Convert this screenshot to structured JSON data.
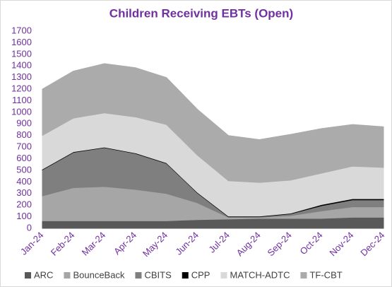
{
  "chart_data": {
    "type": "stacked_area",
    "title": "Children Receiving EBTs (Open)",
    "categories": [
      "Jan-24",
      "Feb-24",
      "Mar-24",
      "Apr-24",
      "May-24",
      "Jun-24",
      "Jul-24",
      "Aug-24",
      "Sep-24",
      "Oct-24",
      "Nov-24",
      "Dec-24"
    ],
    "series": [
      {
        "name": "ARC",
        "color": "#595959",
        "values": [
          65,
          65,
          65,
          65,
          65,
          75,
          80,
          85,
          85,
          85,
          95,
          95
        ]
      },
      {
        "name": "BounceBack",
        "color": "#a6a6a6",
        "values": [
          215,
          285,
          295,
          270,
          235,
          145,
          15,
          10,
          25,
          65,
          90,
          90
        ]
      },
      {
        "name": "CBITS",
        "color": "#7f7f7f",
        "values": [
          225,
          305,
          335,
          310,
          260,
          85,
          5,
          5,
          15,
          45,
          60,
          60
        ]
      },
      {
        "name": "CPP",
        "color": "#000000",
        "values": [
          5,
          5,
          5,
          5,
          5,
          5,
          5,
          5,
          5,
          10,
          10,
          10
        ]
      },
      {
        "name": "MATCH-ADTC",
        "color": "#d9d9d9",
        "values": [
          290,
          290,
          295,
          310,
          330,
          320,
          305,
          290,
          285,
          270,
          280,
          270
        ]
      },
      {
        "name": "TF-CBT",
        "color": "#ababab",
        "values": [
          400,
          405,
          425,
          425,
          405,
          395,
          390,
          370,
          395,
          385,
          360,
          350
        ]
      }
    ],
    "ylim": [
      0,
      1700
    ],
    "yticks": [
      0,
      100,
      200,
      300,
      400,
      500,
      600,
      700,
      800,
      900,
      1000,
      1100,
      1200,
      1300,
      1400,
      1500,
      1600,
      1700
    ]
  }
}
